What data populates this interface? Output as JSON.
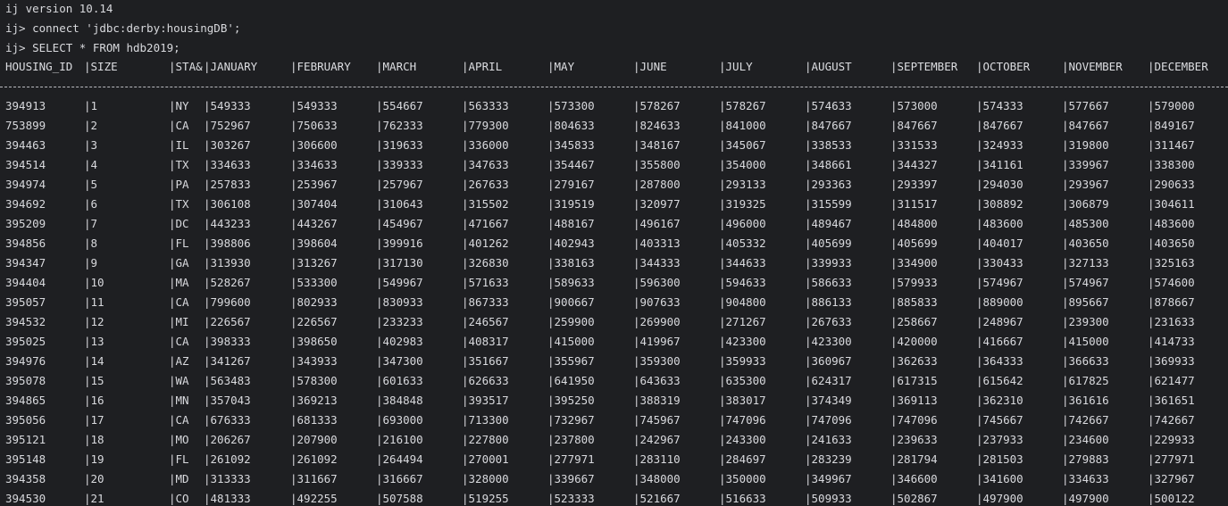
{
  "terminal": {
    "lines": [
      "ij version 10.14",
      "ij> connect 'jdbc:derby:housingDB';",
      "ij> SELECT * FROM hdb2019;"
    ],
    "columns": [
      "HOUSING_ID",
      "|SIZE",
      "|STA&",
      "|JANUARY",
      "|FEBRUARY",
      "|MARCH",
      "|APRIL",
      "|MAY",
      "|JUNE",
      "|JULY",
      "|AUGUST",
      "|SEPTEMBER",
      "|OCTOBER",
      "|NOVEMBER",
      "|DECEMBER"
    ],
    "rows": [
      [
        "394913",
        "|1",
        "|NY",
        "|549333",
        "|549333",
        "|554667",
        "|563333",
        "|573300",
        "|578267",
        "|578267",
        "|574633",
        "|573000",
        "|574333",
        "|577667",
        "|579000"
      ],
      [
        "753899",
        "|2",
        "|CA",
        "|752967",
        "|750633",
        "|762333",
        "|779300",
        "|804633",
        "|824633",
        "|841000",
        "|847667",
        "|847667",
        "|847667",
        "|847667",
        "|849167"
      ],
      [
        "394463",
        "|3",
        "|IL",
        "|303267",
        "|306600",
        "|319633",
        "|336000",
        "|345833",
        "|348167",
        "|345067",
        "|338533",
        "|331533",
        "|324933",
        "|319800",
        "|311467"
      ],
      [
        "394514",
        "|4",
        "|TX",
        "|334633",
        "|334633",
        "|339333",
        "|347633",
        "|354467",
        "|355800",
        "|354000",
        "|348661",
        "|344327",
        "|341161",
        "|339967",
        "|338300"
      ],
      [
        "394974",
        "|5",
        "|PA",
        "|257833",
        "|253967",
        "|257967",
        "|267633",
        "|279167",
        "|287800",
        "|293133",
        "|293363",
        "|293397",
        "|294030",
        "|293967",
        "|290633"
      ],
      [
        "394692",
        "|6",
        "|TX",
        "|306108",
        "|307404",
        "|310643",
        "|315502",
        "|319519",
        "|320977",
        "|319325",
        "|315599",
        "|311517",
        "|308892",
        "|306879",
        "|304611"
      ],
      [
        "395209",
        "|7",
        "|DC",
        "|443233",
        "|443267",
        "|454967",
        "|471667",
        "|488167",
        "|496167",
        "|496000",
        "|489467",
        "|484800",
        "|483600",
        "|485300",
        "|483600"
      ],
      [
        "394856",
        "|8",
        "|FL",
        "|398806",
        "|398604",
        "|399916",
        "|401262",
        "|402943",
        "|403313",
        "|405332",
        "|405699",
        "|405699",
        "|404017",
        "|403650",
        "|403650"
      ],
      [
        "394347",
        "|9",
        "|GA",
        "|313930",
        "|313267",
        "|317130",
        "|326830",
        "|338163",
        "|344333",
        "|344633",
        "|339933",
        "|334900",
        "|330433",
        "|327133",
        "|325163"
      ],
      [
        "394404",
        "|10",
        "|MA",
        "|528267",
        "|533300",
        "|549967",
        "|571633",
        "|589633",
        "|596300",
        "|594633",
        "|586633",
        "|579933",
        "|574967",
        "|574967",
        "|574600"
      ],
      [
        "395057",
        "|11",
        "|CA",
        "|799600",
        "|802933",
        "|830933",
        "|867333",
        "|900667",
        "|907633",
        "|904800",
        "|886133",
        "|885833",
        "|889000",
        "|895667",
        "|878667"
      ],
      [
        "394532",
        "|12",
        "|MI",
        "|226567",
        "|226567",
        "|233233",
        "|246567",
        "|259900",
        "|269900",
        "|271267",
        "|267633",
        "|258667",
        "|248967",
        "|239300",
        "|231633"
      ],
      [
        "395025",
        "|13",
        "|CA",
        "|398333",
        "|398650",
        "|402983",
        "|408317",
        "|415000",
        "|419967",
        "|423300",
        "|423300",
        "|420000",
        "|416667",
        "|415000",
        "|414733"
      ],
      [
        "394976",
        "|14",
        "|AZ",
        "|341267",
        "|343933",
        "|347300",
        "|351667",
        "|355967",
        "|359300",
        "|359933",
        "|360967",
        "|362633",
        "|364333",
        "|366633",
        "|369933"
      ],
      [
        "395078",
        "|15",
        "|WA",
        "|563483",
        "|578300",
        "|601633",
        "|626633",
        "|641950",
        "|643633",
        "|635300",
        "|624317",
        "|617315",
        "|615642",
        "|617825",
        "|621477"
      ],
      [
        "394865",
        "|16",
        "|MN",
        "|357043",
        "|369213",
        "|384848",
        "|393517",
        "|395250",
        "|388319",
        "|383017",
        "|374349",
        "|369113",
        "|362310",
        "|361616",
        "|361651"
      ],
      [
        "395056",
        "|17",
        "|CA",
        "|676333",
        "|681333",
        "|693000",
        "|713300",
        "|732967",
        "|745967",
        "|747096",
        "|747096",
        "|747096",
        "|745667",
        "|742667",
        "|742667"
      ],
      [
        "395121",
        "|18",
        "|MO",
        "|206267",
        "|207900",
        "|216100",
        "|227800",
        "|237800",
        "|242967",
        "|243300",
        "|241633",
        "|239633",
        "|237933",
        "|234600",
        "|229933"
      ],
      [
        "395148",
        "|19",
        "|FL",
        "|261092",
        "|261092",
        "|264494",
        "|270001",
        "|277971",
        "|283110",
        "|284697",
        "|283239",
        "|281794",
        "|281503",
        "|279883",
        "|277971"
      ],
      [
        "394358",
        "|20",
        "|MD",
        "|313333",
        "|311667",
        "|316667",
        "|328000",
        "|339667",
        "|348000",
        "|350000",
        "|349967",
        "|346600",
        "|341600",
        "|334633",
        "|327967"
      ],
      [
        "394530",
        "|21",
        "|CO",
        "|481333",
        "|492255",
        "|507588",
        "|519255",
        "|523333",
        "|521667",
        "|516633",
        "|509933",
        "|502867",
        "|497900",
        "|497900",
        "|500122"
      ]
    ]
  }
}
